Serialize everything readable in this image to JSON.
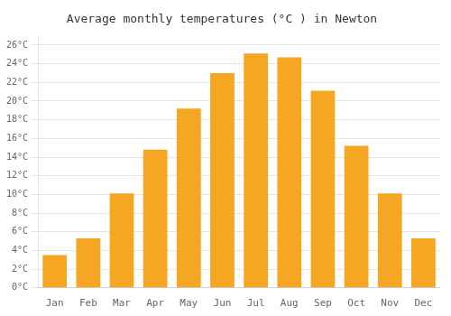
{
  "chart_data": {
    "type": "bar",
    "title": "Average monthly temperatures (°C ) in Newton",
    "categories": [
      "Jan",
      "Feb",
      "Mar",
      "Apr",
      "May",
      "Jun",
      "Jul",
      "Aug",
      "Sep",
      "Oct",
      "Nov",
      "Dec"
    ],
    "values": [
      3.5,
      5.3,
      10.1,
      14.8,
      19.2,
      23.0,
      25.1,
      24.7,
      21.1,
      15.2,
      10.1,
      5.3
    ],
    "color": "#F5A623",
    "ylim": [
      0,
      27
    ],
    "yticks": [
      {
        "value": 0,
        "label": "0°C"
      },
      {
        "value": 2,
        "label": "2°C"
      },
      {
        "value": 4,
        "label": "4°C"
      },
      {
        "value": 6,
        "label": "6°C"
      },
      {
        "value": 8,
        "label": "8°C"
      },
      {
        "value": 10,
        "label": "10°C"
      },
      {
        "value": 12,
        "label": "12°C"
      },
      {
        "value": 14,
        "label": "14°C"
      },
      {
        "value": 16,
        "label": "16°C"
      },
      {
        "value": 18,
        "label": "18°C"
      },
      {
        "value": 20,
        "label": "20°C"
      },
      {
        "value": 22,
        "label": "22°C"
      },
      {
        "value": 24,
        "label": "24°C"
      },
      {
        "value": 26,
        "label": "26°C"
      }
    ],
    "grid": true
  }
}
